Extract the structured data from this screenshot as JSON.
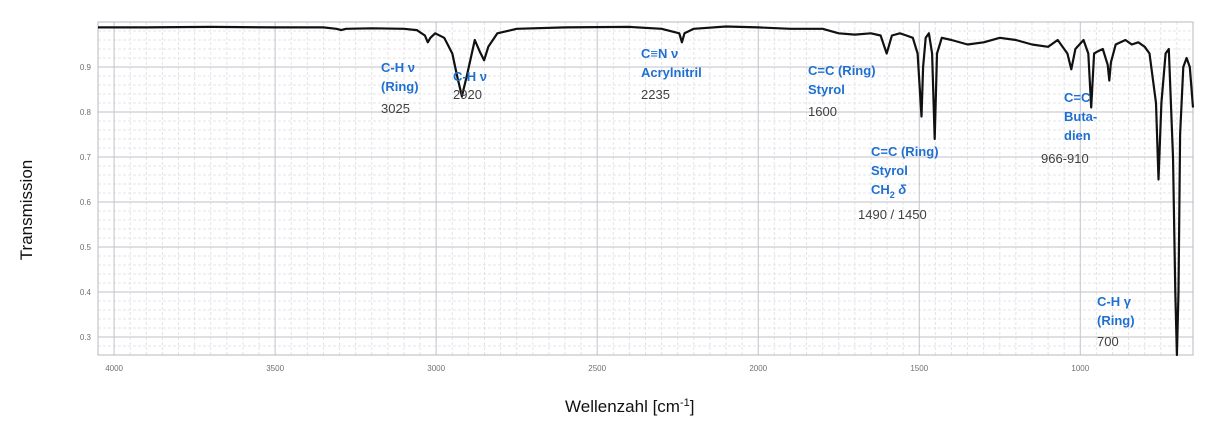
{
  "chart_data": {
    "type": "line",
    "xlabel": "Wellenzahl [cm",
    "xlabel_sup": "-1",
    "xlabel_end": "]",
    "ylabel": "Transmission",
    "xlim": [
      4050,
      650
    ],
    "ylim": [
      0.26,
      1.0
    ],
    "x_reversed": true,
    "grid": true,
    "x_ticks": [
      4000,
      3500,
      3000,
      2500,
      2000,
      1500,
      1000
    ],
    "y_ticks": [
      0.3,
      0.4,
      0.5,
      0.6,
      0.7,
      0.8,
      0.9
    ],
    "series": [
      {
        "color": "#111111",
        "x": [
          4050,
          3900,
          3700,
          3500,
          3350,
          3310,
          3295,
          3280,
          3200,
          3100,
          3060,
          3035,
          3026,
          3018,
          3003,
          2975,
          2950,
          2935,
          2920,
          2905,
          2880,
          2865,
          2851,
          2838,
          2810,
          2750,
          2600,
          2400,
          2300,
          2245,
          2237,
          2229,
          2200,
          2100,
          2000,
          1900,
          1800,
          1750,
          1700,
          1650,
          1620,
          1601,
          1585,
          1560,
          1540,
          1520,
          1505,
          1493,
          1488,
          1480,
          1470,
          1460,
          1452,
          1445,
          1430,
          1400,
          1350,
          1300,
          1250,
          1200,
          1150,
          1100,
          1070,
          1040,
          1028,
          1015,
          990,
          975,
          966,
          957,
          945,
          930,
          915,
          910,
          905,
          890,
          860,
          840,
          820,
          800,
          785,
          765,
          757,
          748,
          735,
          725,
          712,
          705,
          700,
          695,
          690,
          680,
          670,
          660,
          650
        ],
        "y": [
          0.988,
          0.988,
          0.989,
          0.988,
          0.988,
          0.985,
          0.982,
          0.985,
          0.986,
          0.985,
          0.982,
          0.97,
          0.955,
          0.965,
          0.975,
          0.965,
          0.93,
          0.88,
          0.835,
          0.88,
          0.96,
          0.935,
          0.915,
          0.945,
          0.975,
          0.985,
          0.988,
          0.989,
          0.985,
          0.975,
          0.955,
          0.975,
          0.985,
          0.99,
          0.988,
          0.985,
          0.985,
          0.975,
          0.972,
          0.975,
          0.97,
          0.93,
          0.97,
          0.975,
          0.97,
          0.965,
          0.93,
          0.79,
          0.9,
          0.965,
          0.975,
          0.93,
          0.74,
          0.93,
          0.965,
          0.96,
          0.95,
          0.955,
          0.965,
          0.96,
          0.95,
          0.945,
          0.96,
          0.93,
          0.895,
          0.94,
          0.96,
          0.93,
          0.81,
          0.93,
          0.935,
          0.94,
          0.905,
          0.87,
          0.91,
          0.95,
          0.96,
          0.95,
          0.955,
          0.945,
          0.93,
          0.82,
          0.65,
          0.82,
          0.93,
          0.94,
          0.7,
          0.4,
          0.26,
          0.4,
          0.75,
          0.9,
          0.92,
          0.9,
          0.81
        ]
      }
    ],
    "annotations": [
      {
        "id": "ch-ring",
        "lines": [
          "C-H ν",
          "(Ring)"
        ],
        "value": "3025"
      },
      {
        "id": "ch",
        "lines": [
          "C-H ν"
        ],
        "value": "2920"
      },
      {
        "id": "cn",
        "lines": [
          "C≡N ν",
          "Acrylnitril"
        ],
        "value": "2235"
      },
      {
        "id": "cc-1600",
        "lines": [
          "C=C (Ring)",
          "Styrol"
        ],
        "value": "1600"
      },
      {
        "id": "cc-1490",
        "lines": [
          "C=C (Ring)",
          "Styrol",
          "CH",
          "2",
          " δ"
        ],
        "value": "1490 / 1450"
      },
      {
        "id": "cc-buta",
        "lines": [
          "C=C",
          "Buta-",
          "dien"
        ],
        "value": "966-910"
      },
      {
        "id": "ch-700",
        "lines": [
          "C-H γ",
          "(Ring)"
        ],
        "value": "700"
      }
    ]
  }
}
